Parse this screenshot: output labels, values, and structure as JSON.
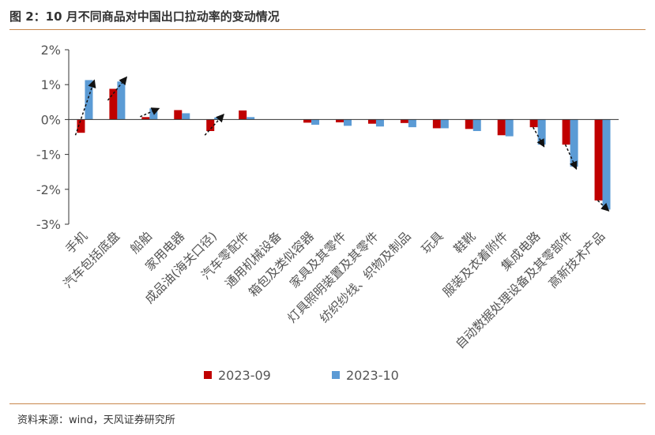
{
  "title": "图 2：10 月不同商品对中国出口拉动率的变动情况",
  "source": "资料来源：wind，天风证券研究所",
  "colors": {
    "series1": "#c00000",
    "series2": "#5b9bd5",
    "axis": "#333333",
    "rule": "#c8874b"
  },
  "chart_data": {
    "type": "bar",
    "title": "",
    "xlabel": "",
    "ylabel": "",
    "ylim": [
      -3,
      2
    ],
    "yticks": [
      2,
      1,
      0,
      -1,
      -2,
      -3
    ],
    "ytick_labels": [
      "2%",
      "1%",
      "0%",
      "-1%",
      "-2%",
      "-3%"
    ],
    "unit": "%",
    "legend_position": "bottom",
    "grid": false,
    "categories": [
      "手机",
      "汽车包括底盘",
      "船舶",
      "家用电器",
      "成品油(海关口径)",
      "汽车零配件",
      "通用机械设备",
      "箱包及类似容器",
      "家具及其零件",
      "灯具照明装置及其零件",
      "纺织纱线、织物及制品",
      "玩具",
      "鞋靴",
      "服装及衣着附件",
      "集成电路",
      "自动数据处理设备及其零部件",
      "高新技术产品"
    ],
    "series": [
      {
        "name": "2023-09",
        "values": [
          -0.38,
          0.88,
          0.07,
          0.27,
          -0.33,
          0.26,
          0.0,
          -0.09,
          -0.08,
          -0.12,
          -0.1,
          -0.25,
          -0.27,
          -0.45,
          -0.22,
          -0.72,
          -2.32
        ]
      },
      {
        "name": "2023-10",
        "values": [
          1.13,
          1.09,
          0.32,
          0.18,
          0.06,
          0.07,
          0.0,
          -0.15,
          -0.18,
          -0.2,
          -0.22,
          -0.25,
          -0.33,
          -0.48,
          -0.72,
          -1.35,
          -2.58
        ]
      }
    ],
    "annotations": [
      {
        "type": "arrow",
        "category": "手机",
        "from": -0.45,
        "to": 1.13
      },
      {
        "type": "arrow",
        "category": "汽车包括底盘",
        "from": 0.55,
        "to": 1.22
      },
      {
        "type": "arrow",
        "category": "船舶",
        "from": 0.08,
        "to": 0.32
      },
      {
        "type": "arrow",
        "category": "成品油(海关口径)",
        "from": -0.45,
        "to": 0.15
      },
      {
        "type": "arrow",
        "category": "集成电路",
        "from": -0.22,
        "to": -0.78
      },
      {
        "type": "arrow",
        "category": "自动数据处理设备及其零部件",
        "from": -0.72,
        "to": -1.42
      },
      {
        "type": "arrow",
        "category": "高新技术产品",
        "from": -2.32,
        "to": -2.62
      }
    ]
  }
}
